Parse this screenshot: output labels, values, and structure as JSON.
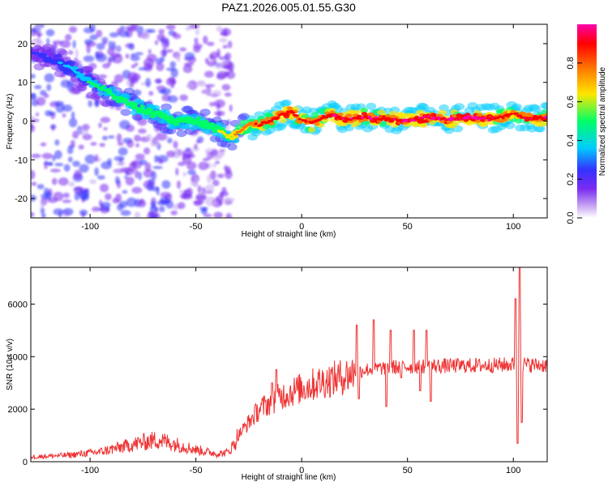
{
  "title": "PAZ1.2026.005.01.55.G30",
  "chart_data": [
    {
      "type": "heatmap",
      "xlabel": "Height of straight line (km)",
      "ylabel": "Frequency (Hz)",
      "xlim": [
        -128,
        116
      ],
      "ylim": [
        -25,
        25
      ],
      "xticks": [
        -100,
        -50,
        0,
        50,
        100
      ],
      "yticks": [
        -20,
        -10,
        0,
        10,
        20
      ],
      "xtick_labels": [
        "-100",
        "-50",
        "0",
        "50",
        "100"
      ],
      "ytick_labels": [
        "-20",
        "-10",
        "0",
        "10",
        "20"
      ],
      "ridge": {
        "x": [
          -128,
          -110,
          -100,
          -90,
          -80,
          -70,
          -60,
          -50,
          -45,
          -40,
          -35,
          -30,
          -25,
          -20,
          -15,
          -10,
          -5,
          0,
          5,
          10,
          15,
          20,
          30,
          40,
          50,
          60,
          70,
          80,
          90,
          95,
          100,
          105,
          110,
          116
        ],
        "y": [
          18,
          14,
          10,
          7,
          4,
          2,
          0,
          0,
          -1,
          -2,
          -4,
          -3,
          -1,
          -1,
          0,
          1.5,
          2.5,
          0,
          -0.5,
          1,
          1.5,
          0.5,
          1,
          0.5,
          0,
          1,
          0.5,
          1,
          0.5,
          1,
          2,
          1,
          0.8,
          1
        ],
        "amp": [
          0.15,
          0.3,
          0.4,
          0.45,
          0.5,
          0.5,
          0.5,
          0.5,
          0.5,
          0.55,
          0.6,
          0.7,
          0.8,
          0.85,
          0.85,
          0.9,
          0.95,
          0.85,
          0.9,
          0.9,
          0.95,
          0.95,
          0.95,
          0.95,
          1.0,
          1.0,
          0.95,
          1.0,
          0.95,
          0.9,
          0.85,
          0.9,
          0.95,
          0.95
        ]
      },
      "colorbar": {
        "label": "Normalized spectral amplitude",
        "range": [
          0,
          1
        ],
        "ticks": [
          0.0,
          0.2,
          0.4,
          0.6,
          0.8
        ],
        "tick_labels": [
          "0.0",
          "0.2",
          "0.4",
          "0.6",
          "0.8"
        ],
        "colors": [
          "#ffffff",
          "#c9a8f2",
          "#7a2cf0",
          "#3333ff",
          "#00ccff",
          "#00ff66",
          "#ffe600",
          "#ff7a00",
          "#ff0000",
          "#ff00aa"
        ]
      }
    },
    {
      "type": "line",
      "xlabel": "Height of straight line (km)",
      "ylabel": "SNR (10 * v/v)",
      "xlim": [
        -128,
        116
      ],
      "ylim": [
        0,
        7400
      ],
      "xticks": [
        -100,
        -50,
        0,
        50,
        100
      ],
      "yticks": [
        0,
        2000,
        4000,
        6000
      ],
      "xtick_labels": [
        "-100",
        "-50",
        "0",
        "50",
        "100"
      ],
      "ytick_labels": [
        "0",
        "2000",
        "4000",
        "6000"
      ],
      "color": "#ee3333",
      "trend": {
        "x": [
          -128,
          -110,
          -95,
          -85,
          -75,
          -68,
          -60,
          -50,
          -40,
          -35,
          -32,
          -30,
          -25,
          -20,
          -10,
          0,
          10,
          20,
          25,
          30,
          40,
          50,
          60,
          70,
          80,
          90,
          100,
          105,
          110,
          116
        ],
        "y": [
          180,
          250,
          380,
          560,
          740,
          840,
          680,
          460,
          300,
          350,
          650,
          1000,
          1500,
          2000,
          2500,
          2800,
          3050,
          3250,
          3400,
          3500,
          3580,
          3620,
          3640,
          3650,
          3660,
          3670,
          3700,
          3700,
          3680,
          3680
        ]
      },
      "spikes": [
        {
          "x": -14,
          "y": 3000
        },
        {
          "x": -12,
          "y": 3500
        },
        {
          "x": 26,
          "y": 5200
        },
        {
          "x": 27,
          "y": 2400
        },
        {
          "x": 34,
          "y": 5400
        },
        {
          "x": 40,
          "y": 2100
        },
        {
          "x": 42,
          "y": 5000
        },
        {
          "x": 47,
          "y": 3200
        },
        {
          "x": 53,
          "y": 5000
        },
        {
          "x": 56,
          "y": 2700
        },
        {
          "x": 59,
          "y": 5000
        },
        {
          "x": 61,
          "y": 2300
        },
        {
          "x": 101,
          "y": 6200
        },
        {
          "x": 102,
          "y": 700
        },
        {
          "x": 103,
          "y": 7400
        },
        {
          "x": 104,
          "y": 1500
        }
      ]
    }
  ]
}
